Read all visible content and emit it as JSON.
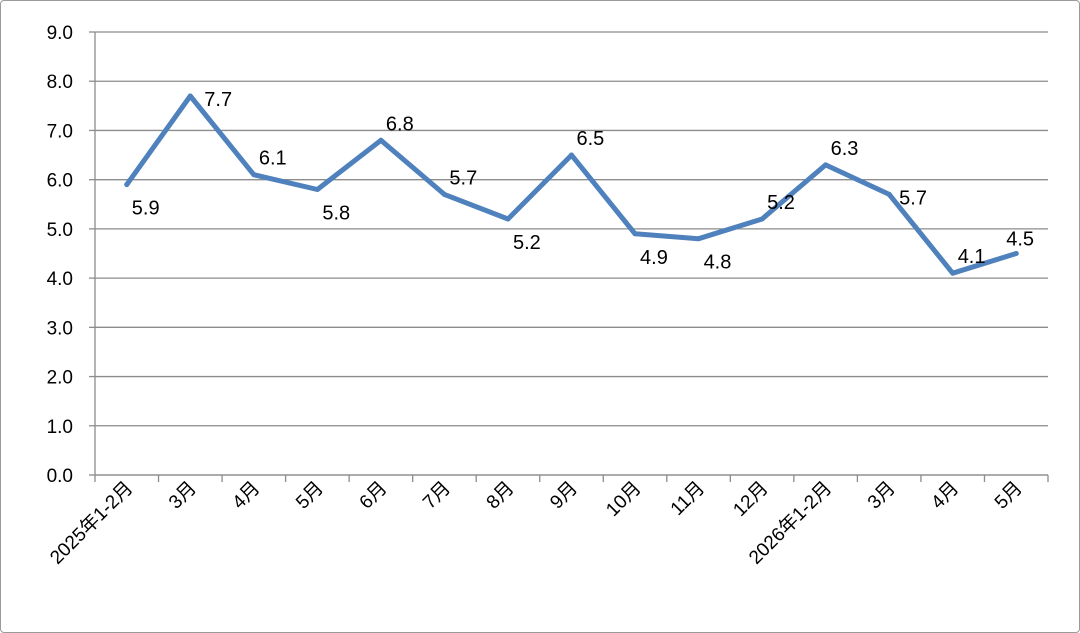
{
  "chart_data": {
    "type": "line",
    "categories": [
      "2025年1-2月",
      "3月",
      "4月",
      "5月",
      "6月",
      "7月",
      "8月",
      "9月",
      "10月",
      "11月",
      "12月",
      "2026年1-2月",
      "3月",
      "4月",
      "5月"
    ],
    "series": [
      {
        "values": [
          5.9,
          7.7,
          6.1,
          5.8,
          6.8,
          5.7,
          5.2,
          6.5,
          4.9,
          4.8,
          5.2,
          6.3,
          5.7,
          4.1,
          4.5
        ],
        "labels": [
          "5.9",
          "7.7",
          "6.1",
          "5.8",
          "6.8",
          "5.7",
          "5.2",
          "6.5",
          "4.9",
          "4.8",
          "5.2",
          "6.3",
          "5.7",
          "4.1",
          "4.5"
        ],
        "label_side": [
          "below",
          "above",
          "above",
          "below",
          "above",
          "above",
          "below",
          "above",
          "below",
          "below",
          "above",
          "above",
          "above",
          "above",
          "above"
        ],
        "color": "#4f81bd"
      }
    ],
    "ylim": [
      0,
      9
    ],
    "yticks": [
      0,
      1,
      2,
      3,
      4,
      5,
      6,
      7,
      8,
      9
    ],
    "ytick_labels": [
      "0.0",
      "1.0",
      "2.0",
      "3.0",
      "4.0",
      "5.0",
      "6.0",
      "7.0",
      "8.0",
      "9.0"
    ],
    "grid": true,
    "legend": false,
    "title": "",
    "xlabel": "",
    "ylabel": ""
  }
}
